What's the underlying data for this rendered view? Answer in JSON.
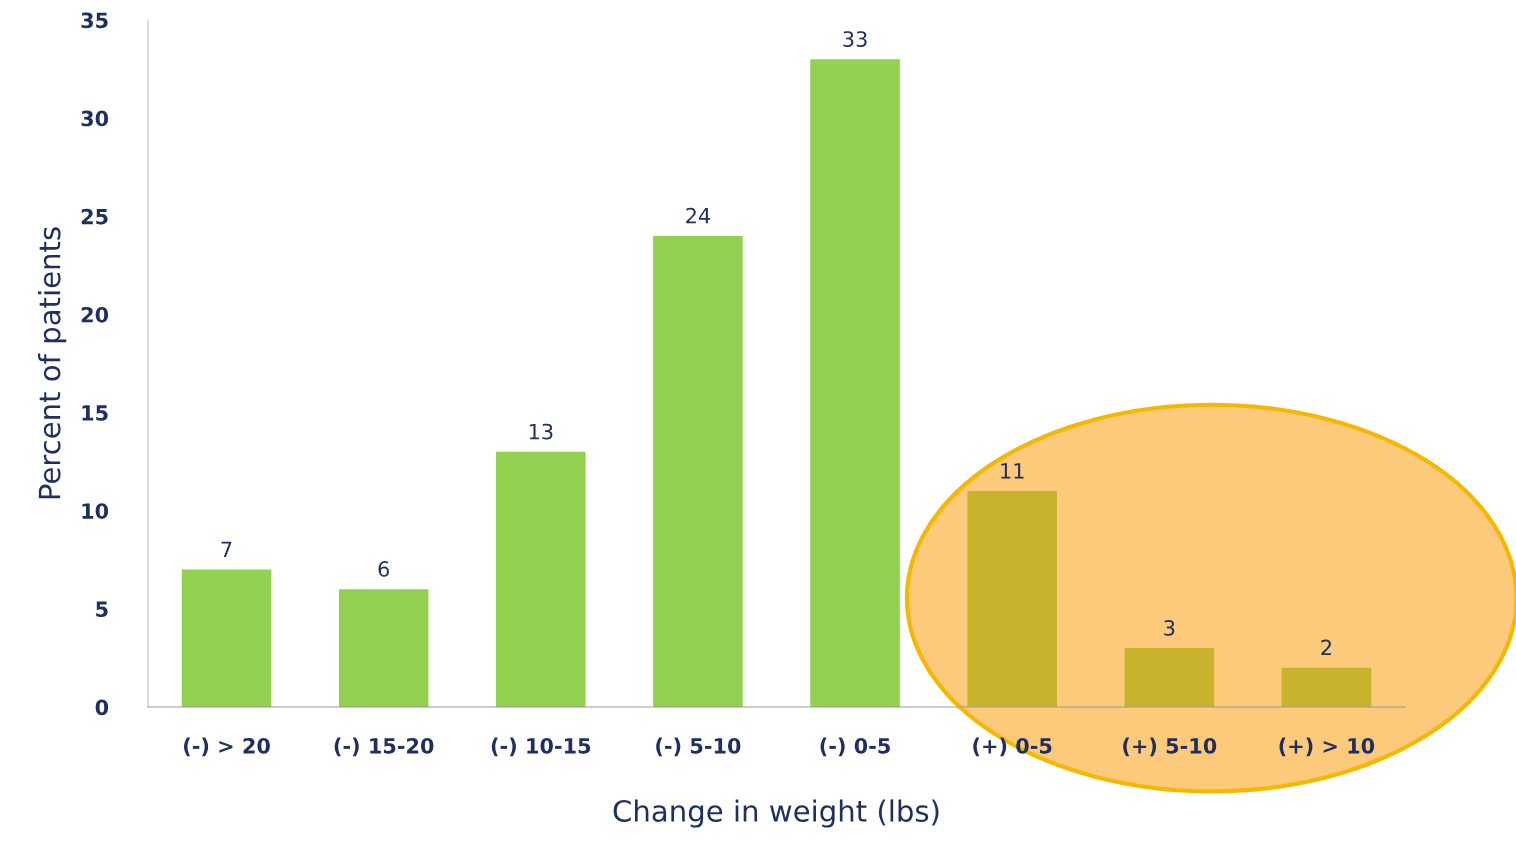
{
  "chart_data": {
    "type": "bar",
    "categories": [
      "(-) > 20",
      "(-) 15-20",
      "(-) 10-15",
      "(-) 5-10",
      "(-) 0-5",
      "(+) 0-5",
      "(+) 5-10",
      "(+) > 10"
    ],
    "values": [
      7,
      6,
      13,
      24,
      33,
      11,
      3,
      2
    ],
    "colors": [
      "#92d050",
      "#92d050",
      "#92d050",
      "#92d050",
      "#92d050",
      "#c8b42c",
      "#c8b42c",
      "#c8b42c"
    ],
    "xlabel": "Change in weight (lbs)",
    "ylabel": "Percent of patients",
    "ylim": [
      0,
      35
    ],
    "yticks": [
      0,
      5,
      10,
      15,
      20,
      25,
      30,
      35
    ],
    "data_labels": true,
    "grid": false,
    "legend": false
  }
}
